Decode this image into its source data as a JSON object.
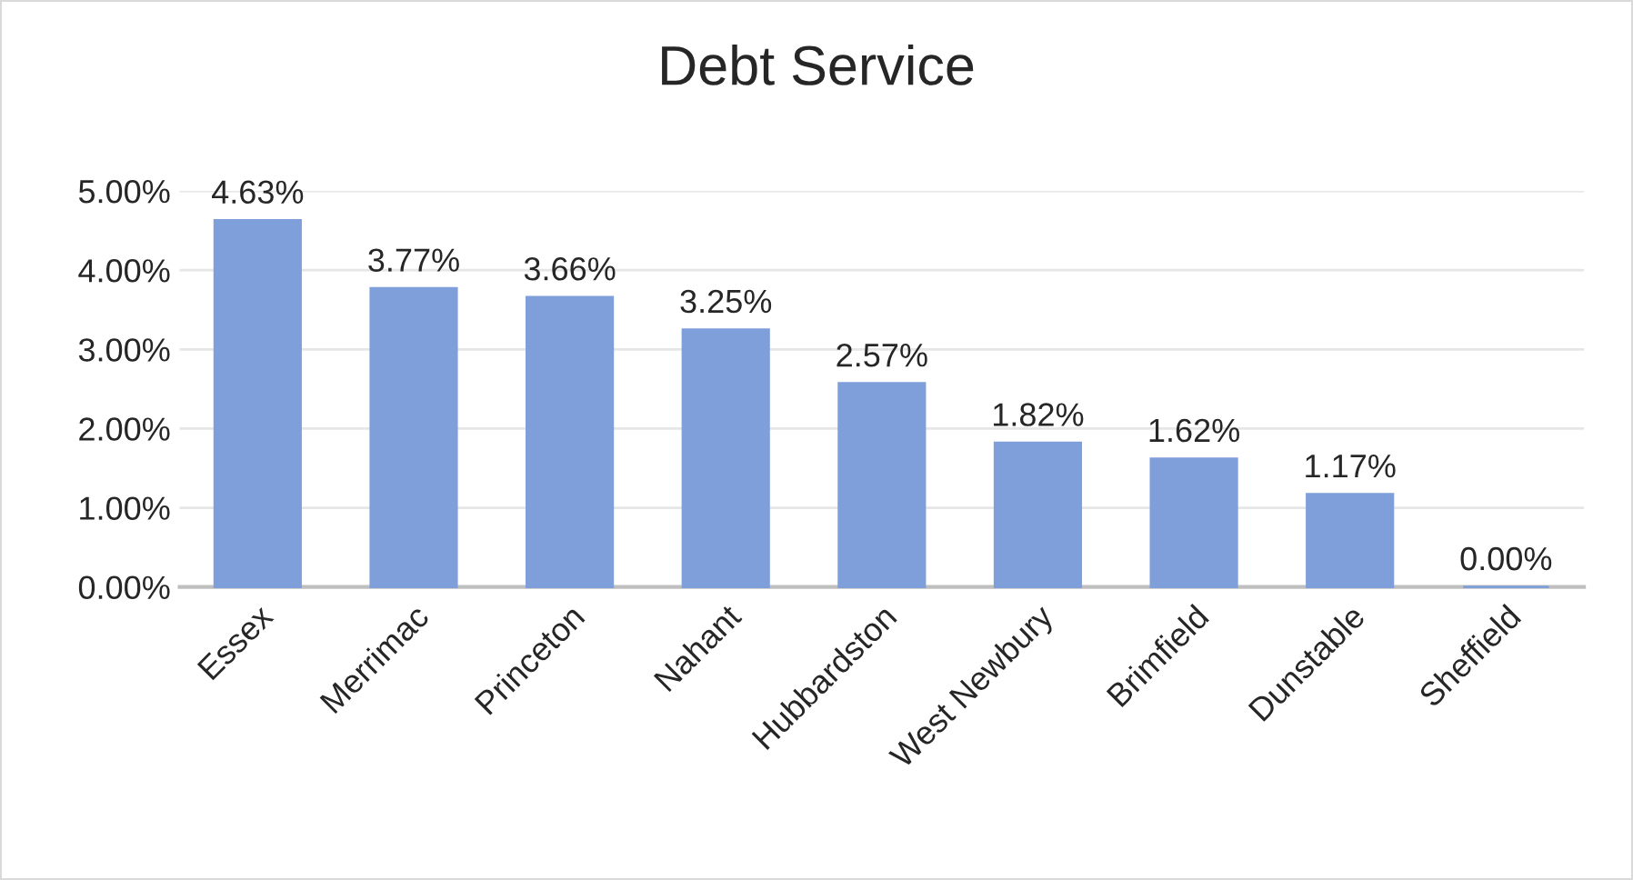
{
  "chart_data": {
    "type": "bar",
    "title": "Debt Service",
    "categories": [
      "Essex",
      "Merrimac",
      "Princeton",
      "Nahant",
      "Hubbardston",
      "West Newbury",
      "Brimfield",
      "Dunstable",
      "Sheffield"
    ],
    "values": [
      4.63,
      3.77,
      3.66,
      3.25,
      2.57,
      1.82,
      1.62,
      1.17,
      0.0
    ],
    "value_labels": [
      "4.63%",
      "3.77%",
      "3.66%",
      "3.25%",
      "2.57%",
      "1.82%",
      "1.62%",
      "1.17%",
      "0.00%"
    ],
    "color": "#7f9fdb",
    "ylim": [
      0,
      5
    ],
    "yticks": [
      {
        "value": 0,
        "label": "0.00%"
      },
      {
        "value": 1,
        "label": "1.00%"
      },
      {
        "value": 2,
        "label": "2.00%"
      },
      {
        "value": 3,
        "label": "3.00%"
      },
      {
        "value": 4,
        "label": "4.00%"
      },
      {
        "value": 5,
        "label": "5.00%"
      }
    ],
    "grid": "y"
  }
}
